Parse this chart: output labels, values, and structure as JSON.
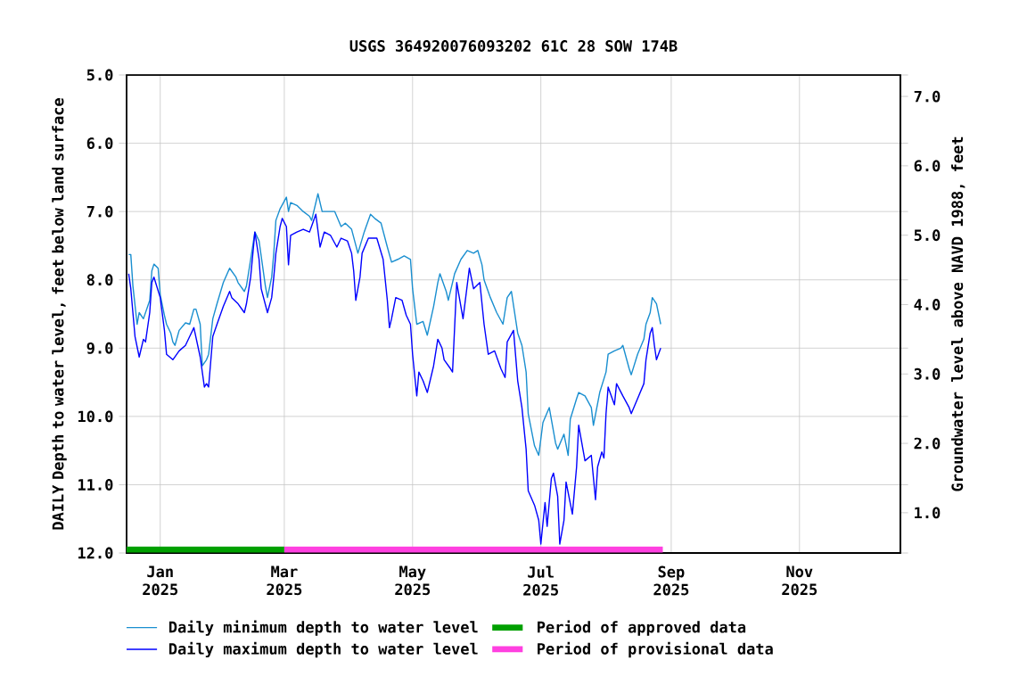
{
  "chart_data": {
    "type": "line",
    "title": "USGS 364920076093202 61C 28 SOW 174B",
    "ylabel": "DAILY Depth to water level, feet below land surface",
    "y2label": "Groundwater level above NAVD 1988, feet",
    "xlim": [
      "2024-12-16",
      "2025-12-19"
    ],
    "xticks": [
      {
        "value": "2025-01-01",
        "label": "Jan 2025"
      },
      {
        "value": "2025-03-01",
        "label": "Mar 2025"
      },
      {
        "value": "2025-05-01",
        "label": "May 2025"
      },
      {
        "value": "2025-07-01",
        "label": "Jul 2025"
      },
      {
        "value": "2025-09-01",
        "label": "Sep 2025"
      },
      {
        "value": "2025-11-01",
        "label": "Nov 2025"
      }
    ],
    "ylim": [
      12.0,
      5.0
    ],
    "yticks": [
      {
        "value": 5,
        "label": "5.0"
      },
      {
        "value": 6,
        "label": "6.0"
      },
      {
        "value": 7,
        "label": "7.0"
      },
      {
        "value": 8,
        "label": "8.0"
      },
      {
        "value": 9,
        "label": "9.0"
      },
      {
        "value": 10,
        "label": "10.0"
      },
      {
        "value": 11,
        "label": "11.0"
      },
      {
        "value": 12,
        "label": "12.0"
      }
    ],
    "y2lim": [
      0.42,
      7.31
    ],
    "y2ticks": [
      {
        "value": 1,
        "label": "1.0"
      },
      {
        "value": 2,
        "label": "2.0"
      },
      {
        "value": 3,
        "label": "3.0"
      },
      {
        "value": 4,
        "label": "4.0"
      },
      {
        "value": 5,
        "label": "5.0"
      },
      {
        "value": 6,
        "label": "6.0"
      },
      {
        "value": 7,
        "label": "7.0"
      }
    ],
    "grid": true,
    "legend": "bottom",
    "series": [
      {
        "name": "Daily minimum depth to water level",
        "color": "#1a8fd0",
        "x": [
          "2024-12-17",
          "2024-12-18",
          "2024-12-19",
          "2024-12-21",
          "2024-12-22",
          "2024-12-24",
          "2024-12-27",
          "2024-12-28",
          "2024-12-29",
          "2024-12-31",
          "2025-01-01",
          "2025-01-03",
          "2025-01-04",
          "2025-01-06",
          "2025-01-07",
          "2025-01-08",
          "2025-01-10",
          "2025-01-13",
          "2025-01-15",
          "2025-01-17",
          "2025-01-18",
          "2025-01-20",
          "2025-01-21",
          "2025-01-23",
          "2025-01-24",
          "2025-01-26",
          "2025-01-28",
          "2025-01-31",
          "2025-02-03",
          "2025-02-06",
          "2025-02-07",
          "2025-02-10",
          "2025-02-11",
          "2025-02-13",
          "2025-02-15",
          "2025-02-17",
          "2025-02-20",
          "2025-02-21",
          "2025-02-23",
          "2025-02-24",
          "2025-02-25",
          "2025-02-27",
          "2025-03-02",
          "2025-03-03",
          "2025-03-04",
          "2025-03-07",
          "2025-03-10",
          "2025-03-13",
          "2025-03-14",
          "2025-03-17",
          "2025-03-19",
          "2025-03-22",
          "2025-03-25",
          "2025-03-28",
          "2025-03-30",
          "2025-04-02",
          "2025-04-05",
          "2025-04-08",
          "2025-04-11",
          "2025-04-13",
          "2025-04-16",
          "2025-04-19",
          "2025-04-21",
          "2025-04-24",
          "2025-04-27",
          "2025-04-30",
          "2025-05-01",
          "2025-05-03",
          "2025-05-06",
          "2025-05-08",
          "2025-05-11",
          "2025-05-13",
          "2025-05-14",
          "2025-05-17",
          "2025-05-18",
          "2025-05-21",
          "2025-05-24",
          "2025-05-27",
          "2025-05-30",
          "2025-06-01",
          "2025-06-03",
          "2025-06-04",
          "2025-06-07",
          "2025-06-10",
          "2025-06-13",
          "2025-06-15",
          "2025-06-17",
          "2025-06-20",
          "2025-06-22",
          "2025-06-24",
          "2025-06-25",
          "2025-06-28",
          "2025-06-30",
          "2025-07-02",
          "2025-07-05",
          "2025-07-08",
          "2025-07-09",
          "2025-07-12",
          "2025-07-14",
          "2025-07-15",
          "2025-07-18",
          "2025-07-19",
          "2025-07-22",
          "2025-07-25",
          "2025-07-26",
          "2025-07-29",
          "2025-08-01",
          "2025-08-02",
          "2025-08-05",
          "2025-08-08",
          "2025-08-09",
          "2025-08-12",
          "2025-08-13",
          "2025-08-16",
          "2025-08-19",
          "2025-08-20",
          "2025-08-22",
          "2025-08-23",
          "2025-08-25",
          "2025-08-27"
        ],
        "values": [
          7.63,
          7.63,
          8.09,
          8.65,
          8.48,
          8.57,
          8.3,
          7.87,
          7.77,
          7.83,
          8.22,
          8.52,
          8.65,
          8.78,
          8.91,
          8.96,
          8.74,
          8.63,
          8.65,
          8.43,
          8.43,
          8.65,
          9.26,
          9.17,
          9.09,
          8.57,
          8.35,
          8.04,
          7.83,
          7.96,
          8.04,
          8.17,
          8.09,
          7.7,
          7.3,
          7.43,
          8.09,
          8.26,
          7.96,
          7.61,
          7.13,
          6.96,
          6.79,
          7.0,
          6.87,
          6.91,
          7.0,
          7.07,
          7.13,
          6.74,
          7.0,
          7.0,
          7.0,
          7.22,
          7.17,
          7.26,
          7.61,
          7.3,
          7.04,
          7.1,
          7.17,
          7.52,
          7.74,
          7.7,
          7.65,
          7.7,
          8.13,
          8.65,
          8.61,
          8.81,
          8.39,
          8.04,
          7.91,
          8.17,
          8.3,
          7.91,
          7.7,
          7.57,
          7.61,
          7.57,
          7.78,
          8.0,
          8.26,
          8.48,
          8.65,
          8.26,
          8.17,
          8.78,
          8.96,
          9.35,
          9.96,
          10.43,
          10.57,
          10.09,
          9.87,
          10.39,
          10.48,
          10.26,
          10.57,
          10.04,
          9.74,
          9.65,
          9.7,
          9.87,
          10.13,
          9.65,
          9.35,
          9.09,
          9.04,
          9.0,
          8.96,
          9.3,
          9.39,
          9.09,
          8.87,
          8.65,
          8.48,
          8.26,
          8.35,
          8.65
        ]
      },
      {
        "name": "Period of approved data",
        "color": "#00a000",
        "x": [
          "2024-12-16",
          "2025-03-01"
        ],
        "values": [
          11.95,
          11.95
        ]
      },
      {
        "name": "Daily maximum depth to water level",
        "color": "#0000ff",
        "x": [
          "2024-12-17",
          "2024-12-18",
          "2024-12-20",
          "2024-12-22",
          "2024-12-24",
          "2024-12-25",
          "2024-12-27",
          "2024-12-28",
          "2024-12-29",
          "2025-01-01",
          "2025-01-03",
          "2025-01-04",
          "2025-01-07",
          "2025-01-10",
          "2025-01-13",
          "2025-01-15",
          "2025-01-17",
          "2025-01-20",
          "2025-01-22",
          "2025-01-23",
          "2025-01-24",
          "2025-01-26",
          "2025-01-28",
          "2025-01-31",
          "2025-02-03",
          "2025-02-04",
          "2025-02-07",
          "2025-02-10",
          "2025-02-11",
          "2025-02-13",
          "2025-02-15",
          "2025-02-17",
          "2025-02-18",
          "2025-02-21",
          "2025-02-23",
          "2025-02-24",
          "2025-02-25",
          "2025-02-27",
          "2025-02-28",
          "2025-03-02",
          "2025-03-03",
          "2025-03-04",
          "2025-03-07",
          "2025-03-10",
          "2025-03-13",
          "2025-03-16",
          "2025-03-18",
          "2025-03-20",
          "2025-03-23",
          "2025-03-26",
          "2025-03-28",
          "2025-03-31",
          "2025-04-02",
          "2025-04-03",
          "2025-04-04",
          "2025-04-06",
          "2025-04-07",
          "2025-04-10",
          "2025-04-14",
          "2025-04-17",
          "2025-04-19",
          "2025-04-20",
          "2025-04-21",
          "2025-04-23",
          "2025-04-26",
          "2025-04-28",
          "2025-04-30",
          "2025-05-01",
          "2025-05-03",
          "2025-05-04",
          "2025-05-06",
          "2025-05-08",
          "2025-05-11",
          "2025-05-13",
          "2025-05-15",
          "2025-05-16",
          "2025-05-19",
          "2025-05-20",
          "2025-05-22",
          "2025-05-25",
          "2025-05-28",
          "2025-05-30",
          "2025-06-02",
          "2025-06-04",
          "2025-06-06",
          "2025-06-09",
          "2025-06-12",
          "2025-06-14",
          "2025-06-15",
          "2025-06-18",
          "2025-06-20",
          "2025-06-22",
          "2025-06-24",
          "2025-06-25",
          "2025-06-28",
          "2025-06-30",
          "2025-07-01",
          "2025-07-03",
          "2025-07-04",
          "2025-07-06",
          "2025-07-07",
          "2025-07-09",
          "2025-07-10",
          "2025-07-12",
          "2025-07-13",
          "2025-07-16",
          "2025-07-18",
          "2025-07-19",
          "2025-07-22",
          "2025-07-25",
          "2025-07-27",
          "2025-07-28",
          "2025-07-30",
          "2025-07-31",
          "2025-08-01",
          "2025-08-02",
          "2025-08-05",
          "2025-08-06",
          "2025-08-09",
          "2025-08-12",
          "2025-08-13",
          "2025-08-16",
          "2025-08-19",
          "2025-08-20",
          "2025-08-22",
          "2025-08-23",
          "2025-08-24",
          "2025-08-25",
          "2025-08-27"
        ],
        "values": [
          7.91,
          8.13,
          8.83,
          9.13,
          8.87,
          8.91,
          8.48,
          8.04,
          7.96,
          8.26,
          8.74,
          9.09,
          9.17,
          9.04,
          8.96,
          8.83,
          8.7,
          9.13,
          9.57,
          9.52,
          9.57,
          8.83,
          8.65,
          8.39,
          8.17,
          8.26,
          8.35,
          8.48,
          8.35,
          7.96,
          7.3,
          7.7,
          8.13,
          8.48,
          8.26,
          7.96,
          7.61,
          7.22,
          7.1,
          7.22,
          7.78,
          7.35,
          7.3,
          7.26,
          7.3,
          7.04,
          7.52,
          7.3,
          7.35,
          7.52,
          7.39,
          7.43,
          7.61,
          7.87,
          8.3,
          7.96,
          7.61,
          7.39,
          7.39,
          7.7,
          8.3,
          8.7,
          8.57,
          8.26,
          8.3,
          8.52,
          8.65,
          9.09,
          9.7,
          9.35,
          9.48,
          9.65,
          9.26,
          8.87,
          9.0,
          9.17,
          9.3,
          9.35,
          8.04,
          8.57,
          7.83,
          8.13,
          8.04,
          8.65,
          9.09,
          9.04,
          9.3,
          9.43,
          8.91,
          8.74,
          9.48,
          9.87,
          10.48,
          11.09,
          11.3,
          11.52,
          11.87,
          11.26,
          11.61,
          10.91,
          10.83,
          11.17,
          11.87,
          11.52,
          10.96,
          11.43,
          10.74,
          10.13,
          10.65,
          10.57,
          11.22,
          10.74,
          10.52,
          10.61,
          9.96,
          9.57,
          9.83,
          9.52,
          9.7,
          9.87,
          9.96,
          9.74,
          9.52,
          9.17,
          8.78,
          8.7,
          8.96,
          9.17,
          9.0
        ]
      },
      {
        "name": "Period of provisional data",
        "color": "#ff40e0",
        "x": [
          "2025-03-01",
          "2025-08-28"
        ],
        "values": [
          11.95,
          11.95
        ]
      }
    ]
  }
}
